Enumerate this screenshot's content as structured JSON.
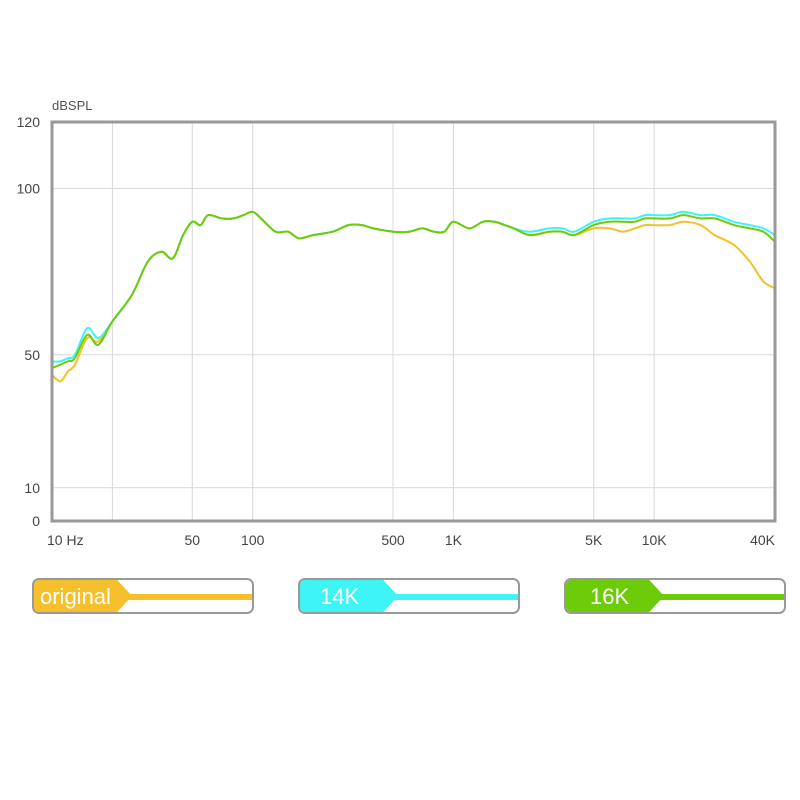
{
  "chart_data": {
    "type": "line",
    "ylabel": "dBSPL",
    "xscale": "log",
    "xlim": [
      10,
      40000
    ],
    "ylim": [
      0,
      120
    ],
    "grid": true,
    "x_ticks": [
      {
        "value": 10,
        "label": "10  Hz"
      },
      {
        "value": 20,
        "label": ""
      },
      {
        "value": 50,
        "label": "50"
      },
      {
        "value": 100,
        "label": "100"
      },
      {
        "value": 500,
        "label": "500"
      },
      {
        "value": 1000,
        "label": "1K"
      },
      {
        "value": 5000,
        "label": "5K"
      },
      {
        "value": 10000,
        "label": "10K"
      },
      {
        "value": 40000,
        "label": "40K"
      }
    ],
    "y_ticks": [
      {
        "value": 0,
        "label": "0"
      },
      {
        "value": 10,
        "label": "10"
      },
      {
        "value": 50,
        "label": "50"
      },
      {
        "value": 100,
        "label": "100"
      },
      {
        "value": 120,
        "label": "120"
      }
    ],
    "legend_position": "bottom",
    "series": [
      {
        "name": "original",
        "color": "#f5c02c",
        "points": [
          [
            10,
            44
          ],
          [
            11,
            42
          ],
          [
            12,
            45
          ],
          [
            13,
            47
          ],
          [
            15,
            55
          ],
          [
            17,
            54
          ],
          [
            20,
            60
          ],
          [
            25,
            68
          ],
          [
            30,
            78
          ],
          [
            35,
            81
          ],
          [
            40,
            79
          ],
          [
            45,
            86
          ],
          [
            50,
            90
          ],
          [
            55,
            89
          ],
          [
            60,
            92
          ],
          [
            70,
            91
          ],
          [
            80,
            91
          ],
          [
            90,
            92
          ],
          [
            100,
            93
          ],
          [
            110,
            91
          ],
          [
            130,
            87
          ],
          [
            150,
            87
          ],
          [
            170,
            85
          ],
          [
            200,
            86
          ],
          [
            250,
            87
          ],
          [
            300,
            89
          ],
          [
            350,
            89
          ],
          [
            400,
            88
          ],
          [
            500,
            87
          ],
          [
            600,
            87
          ],
          [
            700,
            88
          ],
          [
            800,
            87
          ],
          [
            900,
            87
          ],
          [
            1000,
            90
          ],
          [
            1200,
            88
          ],
          [
            1400,
            90
          ],
          [
            1600,
            90
          ],
          [
            1800,
            89
          ],
          [
            2000,
            88
          ],
          [
            2400,
            86
          ],
          [
            3000,
            87
          ],
          [
            3500,
            87
          ],
          [
            4000,
            86
          ],
          [
            5000,
            88
          ],
          [
            6000,
            88
          ],
          [
            7000,
            87
          ],
          [
            8000,
            88
          ],
          [
            9000,
            89
          ],
          [
            10000,
            89
          ],
          [
            12000,
            89
          ],
          [
            14000,
            90
          ],
          [
            17000,
            89
          ],
          [
            20000,
            86
          ],
          [
            25000,
            83
          ],
          [
            30000,
            78
          ],
          [
            35000,
            72
          ],
          [
            40000,
            70
          ]
        ]
      },
      {
        "name": "14K",
        "color": "#3ff4f4",
        "points": [
          [
            10,
            48
          ],
          [
            11,
            48
          ],
          [
            12,
            49
          ],
          [
            13,
            50
          ],
          [
            15,
            58
          ],
          [
            17,
            55
          ],
          [
            20,
            60
          ],
          [
            25,
            68
          ],
          [
            30,
            78
          ],
          [
            35,
            81
          ],
          [
            40,
            79
          ],
          [
            45,
            86
          ],
          [
            50,
            90
          ],
          [
            55,
            89
          ],
          [
            60,
            92
          ],
          [
            70,
            91
          ],
          [
            80,
            91
          ],
          [
            90,
            92
          ],
          [
            100,
            93
          ],
          [
            110,
            91
          ],
          [
            130,
            87
          ],
          [
            150,
            87
          ],
          [
            170,
            85
          ],
          [
            200,
            86
          ],
          [
            250,
            87
          ],
          [
            300,
            89
          ],
          [
            350,
            89
          ],
          [
            400,
            88
          ],
          [
            500,
            87
          ],
          [
            600,
            87
          ],
          [
            700,
            88
          ],
          [
            800,
            87
          ],
          [
            900,
            87
          ],
          [
            1000,
            90
          ],
          [
            1200,
            88
          ],
          [
            1400,
            90
          ],
          [
            1600,
            90
          ],
          [
            1800,
            89
          ],
          [
            2000,
            88
          ],
          [
            2400,
            87
          ],
          [
            3000,
            88
          ],
          [
            3500,
            88
          ],
          [
            4000,
            87
          ],
          [
            5000,
            90
          ],
          [
            6000,
            91
          ],
          [
            7000,
            91
          ],
          [
            8000,
            91
          ],
          [
            9000,
            92
          ],
          [
            10000,
            92
          ],
          [
            12000,
            92
          ],
          [
            14000,
            93
          ],
          [
            17000,
            92
          ],
          [
            20000,
            92
          ],
          [
            25000,
            90
          ],
          [
            30000,
            89
          ],
          [
            35000,
            88
          ],
          [
            40000,
            86
          ]
        ]
      },
      {
        "name": "16K",
        "color": "#6dcc0a",
        "points": [
          [
            10,
            46
          ],
          [
            11,
            47
          ],
          [
            12,
            48
          ],
          [
            13,
            49
          ],
          [
            15,
            56
          ],
          [
            17,
            53
          ],
          [
            20,
            60
          ],
          [
            25,
            68
          ],
          [
            30,
            78
          ],
          [
            35,
            81
          ],
          [
            40,
            79
          ],
          [
            45,
            86
          ],
          [
            50,
            90
          ],
          [
            55,
            89
          ],
          [
            60,
            92
          ],
          [
            70,
            91
          ],
          [
            80,
            91
          ],
          [
            90,
            92
          ],
          [
            100,
            93
          ],
          [
            110,
            91
          ],
          [
            130,
            87
          ],
          [
            150,
            87
          ],
          [
            170,
            85
          ],
          [
            200,
            86
          ],
          [
            250,
            87
          ],
          [
            300,
            89
          ],
          [
            350,
            89
          ],
          [
            400,
            88
          ],
          [
            500,
            87
          ],
          [
            600,
            87
          ],
          [
            700,
            88
          ],
          [
            800,
            87
          ],
          [
            900,
            87
          ],
          [
            1000,
            90
          ],
          [
            1200,
            88
          ],
          [
            1400,
            90
          ],
          [
            1600,
            90
          ],
          [
            1800,
            89
          ],
          [
            2000,
            88
          ],
          [
            2400,
            86
          ],
          [
            3000,
            87
          ],
          [
            3500,
            87
          ],
          [
            4000,
            86
          ],
          [
            5000,
            89
          ],
          [
            6000,
            90
          ],
          [
            7000,
            90
          ],
          [
            8000,
            90
          ],
          [
            9000,
            91
          ],
          [
            10000,
            91
          ],
          [
            12000,
            91
          ],
          [
            14000,
            92
          ],
          [
            17000,
            91
          ],
          [
            20000,
            91
          ],
          [
            25000,
            89
          ],
          [
            30000,
            88
          ],
          [
            35000,
            87
          ],
          [
            40000,
            84
          ]
        ]
      }
    ]
  }
}
